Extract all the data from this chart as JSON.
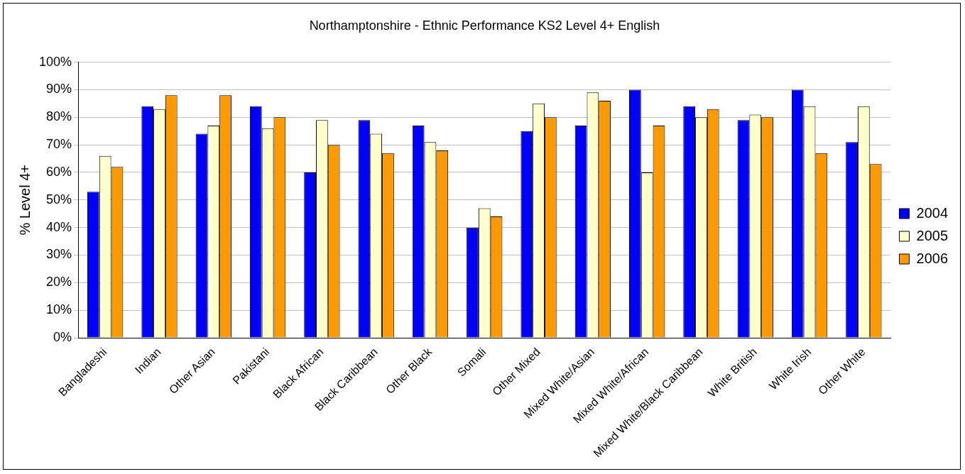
{
  "chart_data": {
    "type": "bar",
    "title": "Northamptonshire - Ethnic Performance KS2 Level 4+ English",
    "ylabel": "% Level 4+",
    "categories": [
      "Bangladeshi",
      "Indian",
      "Other Asian",
      "Pakistani",
      "Black African",
      "Black Caribbean",
      "Other Black",
      "Somali",
      "Other Mixed",
      "Mixed White/Asian",
      "Mixed White/African",
      "Mixed White/Black Caribbean",
      "White British",
      "White Irish",
      "Other White"
    ],
    "series": [
      {
        "name": "2004",
        "color": "#0000ff",
        "values": [
          53,
          84,
          74,
          84,
          60,
          79,
          77,
          40,
          75,
          77,
          90,
          84,
          79,
          90,
          71
        ]
      },
      {
        "name": "2005",
        "color": "#ffffcc",
        "values": [
          66,
          83,
          77,
          76,
          79,
          74,
          71,
          47,
          85,
          89,
          60,
          80,
          81,
          84,
          84
        ]
      },
      {
        "name": "2006",
        "color": "#ff9900",
        "values": [
          62,
          88,
          88,
          80,
          70,
          67,
          68,
          44,
          80,
          86,
          77,
          83,
          80,
          67,
          63
        ]
      }
    ],
    "ylim": [
      0,
      100
    ],
    "yticks": [
      {
        "value": 0,
        "label": "0%"
      },
      {
        "value": 10,
        "label": "10%"
      },
      {
        "value": 20,
        "label": "20%"
      },
      {
        "value": 30,
        "label": "30%"
      },
      {
        "value": 40,
        "label": "40%"
      },
      {
        "value": 50,
        "label": "50%"
      },
      {
        "value": 60,
        "label": "60%"
      },
      {
        "value": 70,
        "label": "70%"
      },
      {
        "value": 80,
        "label": "80%"
      },
      {
        "value": 90,
        "label": "90%"
      },
      {
        "value": 100,
        "label": "100%"
      }
    ],
    "grid": "y",
    "legend": "right"
  }
}
